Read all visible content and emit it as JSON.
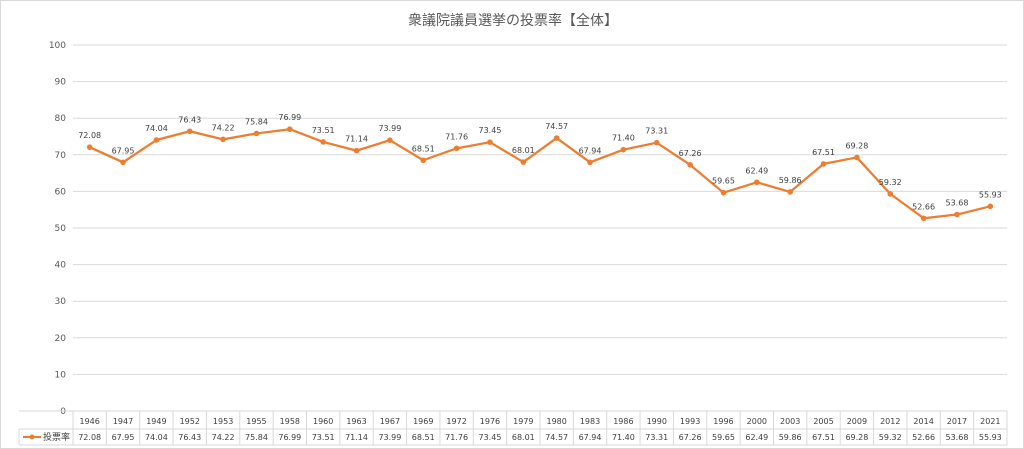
{
  "chart_data": {
    "type": "line",
    "title": "衆議院議員選挙の投票率【全体】",
    "categories": [
      "1946",
      "1947",
      "1949",
      "1952",
      "1953",
      "1955",
      "1958",
      "1960",
      "1963",
      "1967",
      "1969",
      "1972",
      "1976",
      "1979",
      "1980",
      "1983",
      "1986",
      "1990",
      "1993",
      "1996",
      "2000",
      "2003",
      "2005",
      "2009",
      "2012",
      "2014",
      "2017",
      "2021"
    ],
    "series": [
      {
        "name": "投票率",
        "color": "#ED7D31",
        "values": [
          72.08,
          67.95,
          74.04,
          76.43,
          74.22,
          75.84,
          76.99,
          73.51,
          71.14,
          73.99,
          68.51,
          71.76,
          73.45,
          68.01,
          74.57,
          67.94,
          71.4,
          73.31,
          67.26,
          59.65,
          62.49,
          59.86,
          67.51,
          69.28,
          59.32,
          52.66,
          53.68,
          55.93
        ],
        "labels": [
          "72.08",
          "67.95",
          "74.04",
          "76.43",
          "74.22",
          "75.84",
          "76.99",
          "73.51",
          "71.14",
          "73.99",
          "68.51",
          "71.76",
          "73.45",
          "68.01",
          "74.57",
          "67.94",
          "71.40",
          "73.31",
          "67.26",
          "59.65",
          "62.49",
          "59.86",
          "67.51",
          "69.28",
          "59.32",
          "52.66",
          "53.68",
          "55.93"
        ]
      }
    ],
    "ylim": [
      0,
      100
    ],
    "yticks": [
      "0",
      "10",
      "20",
      "30",
      "40",
      "50",
      "60",
      "70",
      "80",
      "90",
      "100"
    ],
    "grid": true,
    "data_table": true,
    "legend": "data-table"
  }
}
